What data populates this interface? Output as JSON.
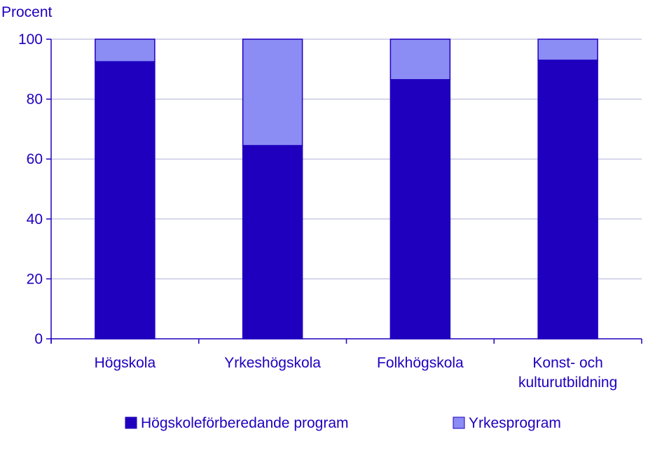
{
  "chart_data": {
    "type": "bar",
    "stacked": true,
    "ylabel": "Procent",
    "ylim": [
      0,
      100
    ],
    "yticks": [
      0,
      20,
      40,
      60,
      80,
      100
    ],
    "grid": true,
    "legend_position": "bottom",
    "categories": [
      [
        "Högskola"
      ],
      [
        "Yrkeshögskola"
      ],
      [
        "Folkhögskola"
      ],
      [
        "Konst- och",
        "kulturutbildning"
      ]
    ],
    "series": [
      {
        "name": "Högskoleförberedande program",
        "color": "#1e00be",
        "values": [
          92.5,
          64.5,
          86.5,
          93
        ]
      },
      {
        "name": "Yrkesprogram",
        "color": "#8c8cf5",
        "values": [
          7.5,
          35.5,
          13.5,
          7
        ]
      }
    ]
  }
}
